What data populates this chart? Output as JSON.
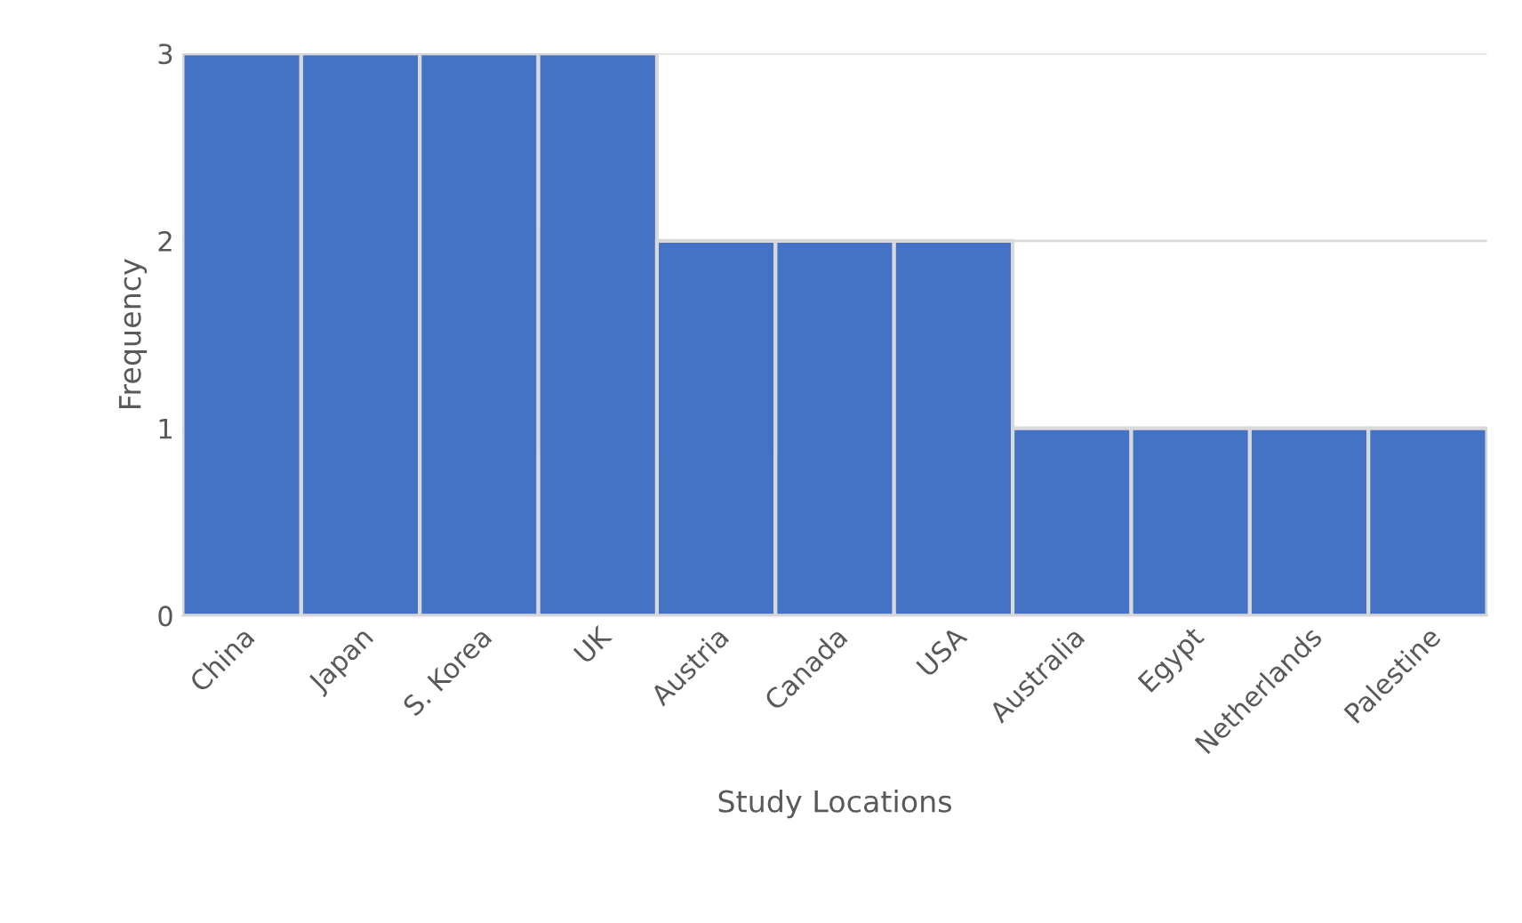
{
  "chart_data": {
    "type": "bar",
    "xlabel": "Study Locations",
    "ylabel": "Frequency",
    "categories": [
      "China",
      "Japan",
      "S. Korea",
      "UK",
      "Austria",
      "Canada",
      "USA",
      "Australia",
      "Egypt",
      "Netherlands",
      "Palestine"
    ],
    "values": [
      3,
      3,
      3,
      3,
      2,
      2,
      2,
      1,
      1,
      1,
      1
    ],
    "color": "#4472c4",
    "ylim": [
      0,
      3
    ],
    "yticks": [
      0,
      1,
      2,
      3
    ],
    "grid": "y"
  }
}
